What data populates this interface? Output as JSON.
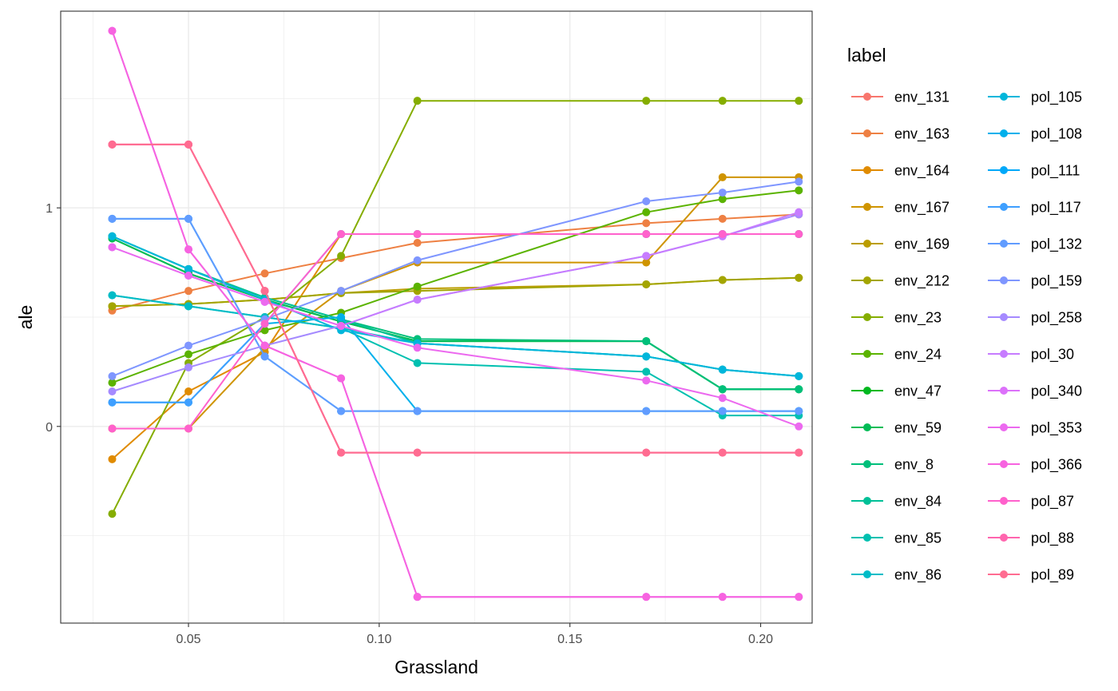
{
  "chart_data": {
    "type": "line",
    "title": "",
    "xlabel": "Grassland",
    "ylabel": "ale",
    "xlim": [
      0.0165,
      0.2135
    ],
    "ylim": [
      -0.9,
      1.9
    ],
    "x_ticks": [
      0.05,
      0.1,
      0.15,
      0.2
    ],
    "x_tick_labels": [
      "0.05",
      "0.10",
      "0.15",
      "0.20"
    ],
    "y_ticks": [
      0,
      1
    ],
    "y_tick_labels": [
      "0",
      "1"
    ],
    "grid": true,
    "legend": {
      "title": "label",
      "position": "right",
      "columns": 2
    },
    "x": [
      0.03,
      0.05,
      0.07,
      0.09,
      0.11,
      0.17,
      0.19,
      0.21
    ],
    "series": [
      {
        "name": "env_131",
        "color": "#F8766D",
        "values": [
          1.29,
          1.29,
          0.62,
          -0.12,
          -0.12,
          -0.12,
          -0.12,
          -0.12
        ]
      },
      {
        "name": "env_163",
        "color": "#EE8043",
        "values": [
          0.53,
          0.62,
          0.7,
          0.77,
          0.84,
          0.93,
          0.95,
          0.97
        ]
      },
      {
        "name": "env_164",
        "color": "#E08B00",
        "values": [
          -0.15,
          0.16,
          0.34,
          0.88,
          0.88,
          0.88,
          0.88,
          0.88
        ]
      },
      {
        "name": "env_167",
        "color": "#CF9400",
        "values": [
          -0.01,
          -0.01,
          0.36,
          0.62,
          0.75,
          0.75,
          1.14,
          1.14
        ]
      },
      {
        "name": "env_169",
        "color": "#BB9D00",
        "values": [
          0.55,
          0.56,
          0.58,
          0.61,
          0.63,
          0.65,
          0.67,
          0.68
        ]
      },
      {
        "name": "env_212",
        "color": "#A3A500",
        "values": [
          0.55,
          0.56,
          0.58,
          0.61,
          0.62,
          0.65,
          0.67,
          0.68
        ]
      },
      {
        "name": "env_23",
        "color": "#85AD00",
        "values": [
          -0.4,
          0.29,
          0.5,
          0.78,
          1.49,
          1.49,
          1.49,
          1.49
        ]
      },
      {
        "name": "env_24",
        "color": "#5BB300",
        "values": [
          0.2,
          0.33,
          0.44,
          0.52,
          0.64,
          0.98,
          1.04,
          1.08
        ]
      },
      {
        "name": "env_47",
        "color": "#00B81F",
        "values": [
          0.86,
          0.7,
          0.58,
          0.48,
          0.39,
          0.39,
          0.17,
          0.17
        ]
      },
      {
        "name": "env_59",
        "color": "#00BC56",
        "values": [
          0.86,
          0.7,
          0.58,
          0.48,
          0.39,
          0.39,
          0.17,
          0.17
        ]
      },
      {
        "name": "env_8",
        "color": "#00BF7A",
        "values": [
          0.87,
          0.72,
          0.59,
          0.49,
          0.4,
          0.39,
          0.17,
          0.17
        ]
      },
      {
        "name": "env_84",
        "color": "#00C097",
        "values": [
          0.87,
          0.72,
          0.59,
          0.49,
          0.38,
          0.32,
          0.26,
          0.23
        ]
      },
      {
        "name": "env_85",
        "color": "#00C0B0",
        "values": [
          0.6,
          0.55,
          0.5,
          0.45,
          0.29,
          0.25,
          0.05,
          0.05
        ]
      },
      {
        "name": "env_86",
        "color": "#00BCC7",
        "values": [
          0.6,
          0.55,
          0.5,
          0.45,
          0.38,
          0.32,
          0.26,
          0.23
        ]
      },
      {
        "name": "pol_105",
        "color": "#00B6DB",
        "values": [
          0.87,
          0.72,
          0.58,
          0.44,
          0.38,
          0.32,
          0.26,
          0.23
        ]
      },
      {
        "name": "pol_108",
        "color": "#00B0EC",
        "values": [
          0.11,
          0.11,
          0.47,
          0.5,
          0.07,
          0.07,
          0.07,
          0.07
        ]
      },
      {
        "name": "pol_111",
        "color": "#00A8F9",
        "values": [
          0.95,
          0.95,
          0.32,
          0.07,
          0.07,
          0.07,
          0.07,
          0.07
        ]
      },
      {
        "name": "pol_117",
        "color": "#3E9FFF",
        "values": [
          0.11,
          0.11,
          0.47,
          0.88,
          0.88,
          0.88,
          0.88,
          0.88
        ]
      },
      {
        "name": "pol_132",
        "color": "#619CFF",
        "values": [
          0.95,
          0.95,
          0.32,
          0.07,
          0.07,
          0.07,
          0.07,
          0.07
        ]
      },
      {
        "name": "pol_159",
        "color": "#7F96FF",
        "values": [
          0.23,
          0.37,
          0.49,
          0.62,
          0.76,
          1.03,
          1.07,
          1.12
        ]
      },
      {
        "name": "pol_258",
        "color": "#A58AFF",
        "values": [
          0.16,
          0.27,
          0.37,
          0.46,
          0.58,
          0.78,
          0.87,
          0.97
        ]
      },
      {
        "name": "pol_30",
        "color": "#C77CFF",
        "values": [
          0.82,
          0.69,
          0.57,
          0.46,
          0.58,
          0.78,
          0.87,
          0.98
        ]
      },
      {
        "name": "pol_340",
        "color": "#DC71FA",
        "values": [
          1.81,
          0.81,
          0.37,
          0.22,
          -0.78,
          -0.78,
          -0.78,
          -0.78
        ]
      },
      {
        "name": "pol_353",
        "color": "#EC69EF",
        "values": [
          0.82,
          0.69,
          0.57,
          0.46,
          0.36,
          0.21,
          0.13,
          0.0
        ]
      },
      {
        "name": "pol_366",
        "color": "#F763E0",
        "values": [
          1.81,
          0.81,
          0.37,
          0.22,
          -0.78,
          -0.78,
          -0.78,
          -0.78
        ]
      },
      {
        "name": "pol_87",
        "color": "#FF61CC",
        "values": [
          -0.01,
          -0.01,
          0.47,
          0.88,
          0.88,
          0.88,
          0.88,
          0.88
        ]
      },
      {
        "name": "pol_88",
        "color": "#FF65AE",
        "values": [
          1.29,
          1.29,
          0.62,
          -0.12,
          -0.12,
          -0.12,
          -0.12,
          -0.12
        ]
      },
      {
        "name": "pol_89",
        "color": "#FF6C91",
        "values": [
          1.29,
          1.29,
          0.62,
          -0.12,
          -0.12,
          -0.12,
          -0.12,
          -0.12
        ]
      }
    ]
  }
}
